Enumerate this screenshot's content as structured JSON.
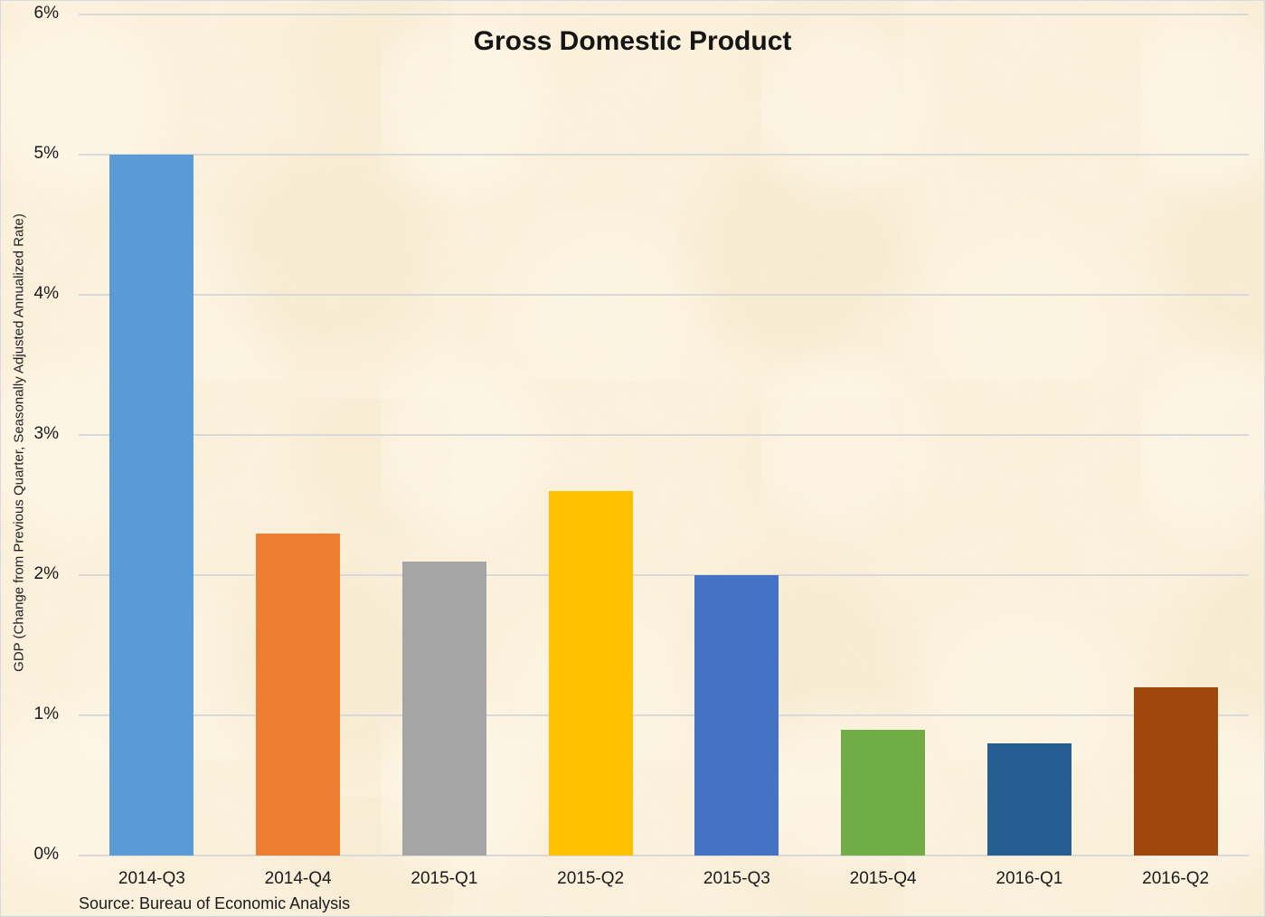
{
  "chart_data": {
    "type": "bar",
    "title": "Gross Domestic Product",
    "ylabel": "GDP (Change from Previous Quarter, Seasonally Adjusted Annualized Rate)",
    "xlabel": "",
    "source_note": "Source: Bureau of Economic Analysis",
    "categories": [
      "2014-Q3",
      "2014-Q4",
      "2015-Q1",
      "2015-Q2",
      "2015-Q3",
      "2015-Q4",
      "2016-Q1",
      "2016-Q2"
    ],
    "values": [
      5.0,
      2.3,
      2.1,
      2.6,
      2.0,
      0.9,
      0.8,
      1.2
    ],
    "value_unit": "%",
    "bar_colors": [
      "#5B9BD5",
      "#ED7D31",
      "#A5A5A5",
      "#FFC000",
      "#4472C4",
      "#70AD47",
      "#255E91",
      "#9E480E"
    ],
    "ylim": [
      0,
      6
    ],
    "yticks": [
      "0%",
      "1%",
      "2%",
      "3%",
      "4%",
      "5%",
      "6%"
    ],
    "grid": true,
    "legend": "none",
    "gridline_color": "#D9D9D9",
    "background_color": "#FBF0DA",
    "text_color": "#1A1A1A"
  }
}
